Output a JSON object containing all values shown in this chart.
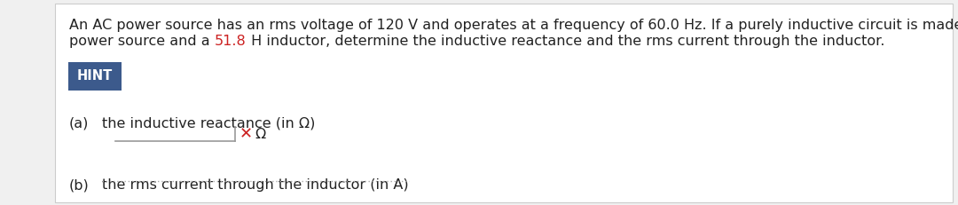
{
  "bg_color": "#f0f0f0",
  "inner_bg_color": "#ffffff",
  "border_color": "#cccccc",
  "main_text_line1": "An AC power source has an rms voltage of 120 V and operates at a frequency of 60.0 Hz. If a purely inductive circuit is made from the",
  "main_text_line2_before": "power source and a ",
  "main_text_highlight": "51.8",
  "main_text_line2_after": " H inductor, determine the inductive reactance and the rms current through the inductor.",
  "hint_text": "HINT",
  "hint_bg_color": "#3c5a8c",
  "hint_text_color": "#ffffff",
  "part_a_label": "(a)",
  "part_a_text": "the inductive reactance (in Ω)",
  "part_b_label": "(b)",
  "part_b_text": "the rms current through the inductor (in A)",
  "x_color": "#cc2222",
  "omega_symbol": "Ω",
  "x_symbol": "✕",
  "highlight_color": "#cc2222",
  "text_color": "#222222",
  "font_size_main": 11.5,
  "font_size_hint": 10.5,
  "font_size_parts": 11.5,
  "line_color": "#999999",
  "dot_color": "#aaaaaa"
}
